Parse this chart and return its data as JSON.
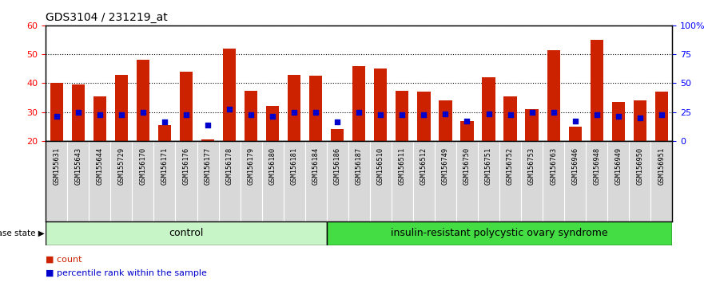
{
  "title": "GDS3104 / 231219_at",
  "samples": [
    "GSM155631",
    "GSM155643",
    "GSM155644",
    "GSM155729",
    "GSM156170",
    "GSM156171",
    "GSM156176",
    "GSM156177",
    "GSM156178",
    "GSM156179",
    "GSM156180",
    "GSM156181",
    "GSM156184",
    "GSM156186",
    "GSM156187",
    "GSM156510",
    "GSM156511",
    "GSM156512",
    "GSM156749",
    "GSM156750",
    "GSM156751",
    "GSM156752",
    "GSM156753",
    "GSM156763",
    "GSM156946",
    "GSM156948",
    "GSM156949",
    "GSM156950",
    "GSM156951"
  ],
  "counts": [
    40,
    39.5,
    35.5,
    43,
    48,
    25.5,
    44,
    20.5,
    52,
    37.5,
    32,
    43,
    42.5,
    24,
    46,
    45,
    37.5,
    37,
    34,
    27,
    42,
    35.5,
    31,
    51.5,
    25,
    55,
    33.5,
    34,
    37
  ],
  "percentiles": [
    28.5,
    30,
    29,
    29,
    30,
    26.5,
    29,
    25.5,
    31,
    29,
    28.5,
    30,
    30,
    26.5,
    30,
    29,
    29,
    29,
    29.5,
    27,
    29.5,
    29,
    30,
    30,
    27,
    29,
    28.5,
    28,
    29
  ],
  "group_labels": [
    "control",
    "insulin-resistant polycystic ovary syndrome"
  ],
  "group_sizes": [
    13,
    16
  ],
  "control_color": "#c8f5c8",
  "disease_color": "#44dd44",
  "bar_color": "#cc2200",
  "percentile_color": "#0000cc",
  "ylim_left": [
    20,
    60
  ],
  "ylim_right": [
    0,
    100
  ],
  "yticks_left": [
    20,
    30,
    40,
    50,
    60
  ],
  "yticks_right": [
    0,
    25,
    50,
    75,
    100
  ],
  "ytick_labels_right": [
    "0",
    "25",
    "50",
    "75",
    "100%"
  ],
  "bar_width": 0.6,
  "title_fontsize": 10,
  "disease_state_label": "disease state",
  "legend_count_label": "count",
  "legend_percentile_label": "percentile rank within the sample"
}
